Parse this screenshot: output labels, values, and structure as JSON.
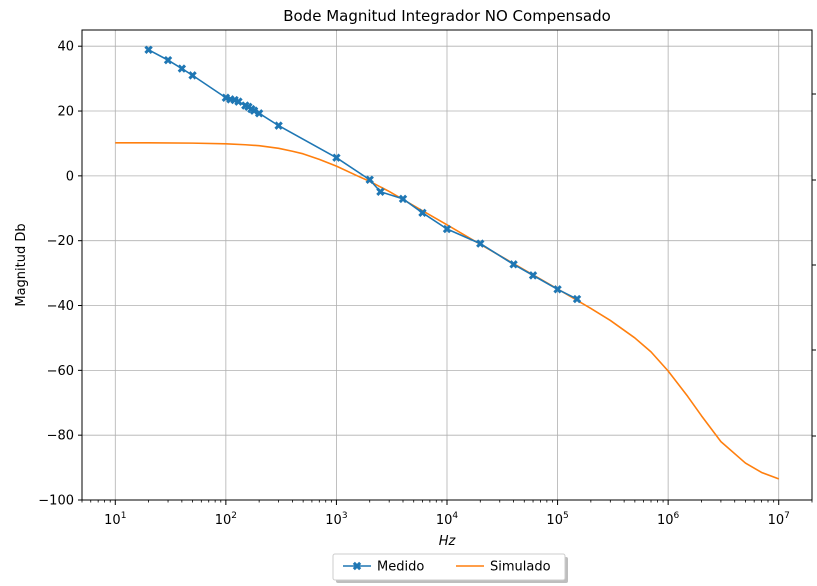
{
  "chart_data": {
    "type": "line",
    "title": "Bode Magnitud Integrador NO Compensado",
    "xlabel": "Hz",
    "ylabel": "Magnitud Db",
    "xscale": "log",
    "xlim": [
      5,
      20000000
    ],
    "ylim": [
      -100,
      45
    ],
    "grid": true,
    "legend_position": "bottom-center",
    "x_ticks": [
      {
        "value": 10,
        "base": "10",
        "exp": "1"
      },
      {
        "value": 100,
        "base": "10",
        "exp": "2"
      },
      {
        "value": 1000,
        "base": "10",
        "exp": "3"
      },
      {
        "value": 10000,
        "base": "10",
        "exp": "4"
      },
      {
        "value": 100000,
        "base": "10",
        "exp": "5"
      },
      {
        "value": 1000000,
        "base": "10",
        "exp": "6"
      },
      {
        "value": 10000000,
        "base": "10",
        "exp": "7"
      }
    ],
    "y_ticks": [
      {
        "value": 40,
        "label": "40"
      },
      {
        "value": 20,
        "label": "20"
      },
      {
        "value": 0,
        "label": "0"
      },
      {
        "value": -20,
        "label": "−20"
      },
      {
        "value": -40,
        "label": "−40"
      },
      {
        "value": -60,
        "label": "−60"
      },
      {
        "value": -80,
        "label": "−80"
      },
      {
        "value": -100,
        "label": "−100"
      }
    ],
    "series": [
      {
        "name": "Medido",
        "color": "#1f77b4",
        "marker": "x-filled",
        "x": [
          20,
          30,
          40,
          50,
          100,
          110,
          120,
          130,
          150,
          160,
          170,
          180,
          200,
          300,
          1000,
          2000,
          2500,
          4000,
          6000,
          10000,
          20000,
          40000,
          60000,
          100000,
          150000
        ],
        "y": [
          38.9,
          35.7,
          33.1,
          31.0,
          24.1,
          23.6,
          23.4,
          22.9,
          21.7,
          21.3,
          20.6,
          20.1,
          19.3,
          15.5,
          5.6,
          -1.2,
          -4.9,
          -7.1,
          -11.4,
          -16.4,
          -20.9,
          -27.3,
          -30.7,
          -35.0,
          -38.0
        ]
      },
      {
        "name": "Simulado",
        "color": "#ff7f0e",
        "marker": "none",
        "x": [
          10,
          20,
          50,
          100,
          150,
          200,
          300,
          400,
          500,
          700,
          1000,
          1500,
          2000,
          3000,
          5000,
          10000,
          20000,
          50000,
          100000,
          200000,
          300000,
          500000,
          700000,
          1000000,
          1500000,
          2000000,
          3000000,
          5000000,
          7000000,
          10000000
        ],
        "y": [
          10.2,
          10.2,
          10.1,
          9.9,
          9.6,
          9.3,
          8.5,
          7.6,
          6.8,
          5.1,
          3.0,
          0.2,
          -1.7,
          -4.8,
          -9.2,
          -15.1,
          -21.1,
          -29.0,
          -34.9,
          -40.9,
          -44.6,
          -50.0,
          -54.3,
          -60.2,
          -68.0,
          -74.0,
          -82.0,
          -88.6,
          -91.5,
          -93.5
        ]
      }
    ]
  }
}
